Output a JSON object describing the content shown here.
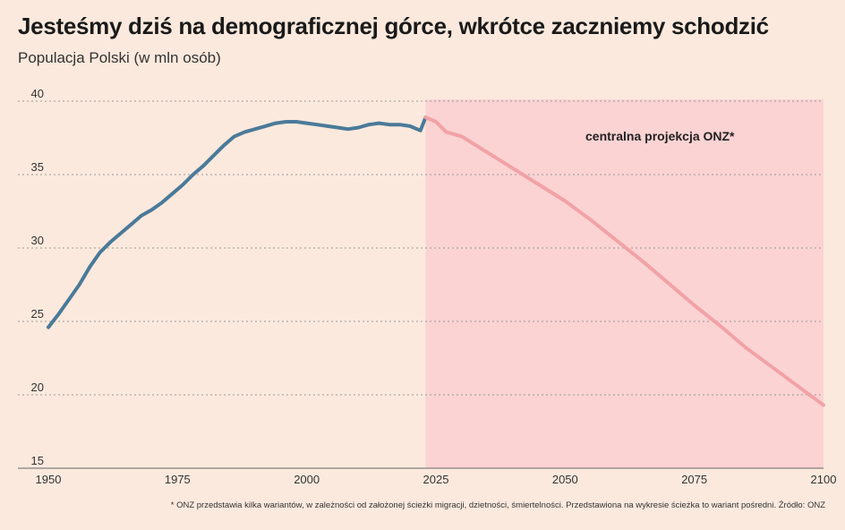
{
  "header": {
    "title": "Jesteśmy dziś na demograficznej górce, wkrótce zaczniemy schodzić",
    "subtitle": "Populacja Polski (w mln osób)"
  },
  "footnote": "* ONZ przedstawia kilka wariantów, w zależności od założonej ścieżki migracji, dzietności, śmiertelności. Przedstawiona na wykresie ścieżka to wariant pośredni. Źródło: ONZ",
  "chart_data": {
    "type": "line",
    "title": "Jesteśmy dziś na demograficznej górce, wkrótce zaczniemy schodzić",
    "subtitle": "Populacja Polski (w mln osób)",
    "xlabel": "",
    "ylabel": "",
    "xlim": [
      1950,
      2100
    ],
    "ylim": [
      15,
      40
    ],
    "x_ticks": [
      1950,
      1975,
      2000,
      2025,
      2050,
      2075,
      2100
    ],
    "y_ticks": [
      15,
      20,
      25,
      30,
      35,
      40
    ],
    "grid": "horizontal dotted",
    "shaded_region": {
      "from": 2023,
      "to": 2100,
      "color": "#fbd3d3"
    },
    "annotation": "centralna projekcja ONZ*",
    "colors": {
      "historical": "#4a7a99",
      "projection": "#f2a2a6",
      "background": "#fbe9dd"
    },
    "series": [
      {
        "name": "historical",
        "x": [
          1950,
          1952,
          1954,
          1956,
          1958,
          1960,
          1962,
          1964,
          1966,
          1968,
          1970,
          1972,
          1974,
          1976,
          1978,
          1980,
          1982,
          1984,
          1986,
          1988,
          1990,
          1992,
          1994,
          1996,
          1998,
          2000,
          2002,
          2004,
          2006,
          2008,
          2010,
          2012,
          2014,
          2016,
          2018,
          2020,
          2022,
          2023
        ],
        "values": [
          24.6,
          25.5,
          26.5,
          27.5,
          28.7,
          29.7,
          30.4,
          31.0,
          31.6,
          32.2,
          32.6,
          33.1,
          33.7,
          34.3,
          35.0,
          35.6,
          36.3,
          37.0,
          37.6,
          37.9,
          38.1,
          38.3,
          38.5,
          38.6,
          38.6,
          38.5,
          38.4,
          38.3,
          38.2,
          38.1,
          38.2,
          38.4,
          38.5,
          38.4,
          38.4,
          38.3,
          38.0,
          38.9
        ]
      },
      {
        "name": "projection",
        "x": [
          2023,
          2025,
          2027,
          2030,
          2035,
          2040,
          2045,
          2050,
          2055,
          2060,
          2065,
          2070,
          2075,
          2080,
          2085,
          2090,
          2095,
          2100
        ],
        "values": [
          38.9,
          38.6,
          37.9,
          37.6,
          36.5,
          35.4,
          34.3,
          33.2,
          31.9,
          30.5,
          29.1,
          27.6,
          26.1,
          24.7,
          23.2,
          21.9,
          20.6,
          19.3
        ]
      }
    ]
  }
}
